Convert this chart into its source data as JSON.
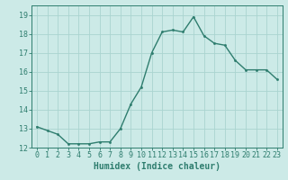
{
  "x": [
    0,
    1,
    2,
    3,
    4,
    5,
    6,
    7,
    8,
    9,
    10,
    11,
    12,
    13,
    14,
    15,
    16,
    17,
    18,
    19,
    20,
    21,
    22,
    23
  ],
  "y": [
    13.1,
    12.9,
    12.7,
    12.2,
    12.2,
    12.2,
    12.3,
    12.3,
    13.0,
    14.3,
    15.2,
    17.0,
    18.1,
    18.2,
    18.1,
    18.9,
    17.9,
    17.5,
    17.4,
    16.6,
    16.1,
    16.1,
    16.1,
    15.6
  ],
  "line_color": "#2e7d6e",
  "marker": ".",
  "marker_size": 3,
  "bg_color": "#cceae7",
  "grid_color": "#aad4d0",
  "xlabel": "Humidex (Indice chaleur)",
  "xlabel_fontsize": 7,
  "ylim": [
    12,
    19.5
  ],
  "xlim": [
    -0.5,
    23.5
  ],
  "yticks": [
    12,
    13,
    14,
    15,
    16,
    17,
    18,
    19
  ],
  "xticks": [
    0,
    1,
    2,
    3,
    4,
    5,
    6,
    7,
    8,
    9,
    10,
    11,
    12,
    13,
    14,
    15,
    16,
    17,
    18,
    19,
    20,
    21,
    22,
    23
  ],
  "tick_label_fontsize": 6,
  "line_width": 1.0
}
